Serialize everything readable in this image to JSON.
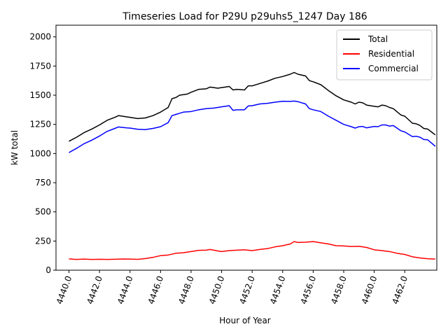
{
  "chart_data": {
    "type": "line",
    "title": "Timeseries Load for P29U p29uhs5_1247  Day 186",
    "xlabel": "Hour of Year",
    "ylabel": "kW total",
    "xlim": [
      4439.15,
      4464.1
    ],
    "ylim": [
      0,
      2100
    ],
    "xticks": [
      4440,
      4442,
      4444,
      4446,
      4448,
      4450,
      4452,
      4454,
      4456,
      4458,
      4460,
      4462
    ],
    "xtick_labels": [
      "4440.0",
      "4442.0",
      "4444.0",
      "4446.0",
      "4448.0",
      "4450.0",
      "4452.0",
      "4454.0",
      "4456.0",
      "4458.0",
      "4460.0",
      "4462.0"
    ],
    "yticks": [
      0,
      250,
      500,
      750,
      1000,
      1250,
      1500,
      1750,
      2000
    ],
    "ytick_labels": [
      "0",
      "250",
      "500",
      "750",
      "1000",
      "1250",
      "1500",
      "1750",
      "2000"
    ],
    "legend_position": "top-right",
    "series": [
      {
        "name": "Total",
        "color": "#000000",
        "points": [
          [
            4440.0,
            1105
          ],
          [
            4440.5,
            1140
          ],
          [
            4441.0,
            1180
          ],
          [
            4441.5,
            1210
          ],
          [
            4442.0,
            1245
          ],
          [
            4442.5,
            1285
          ],
          [
            4443.0,
            1310
          ],
          [
            4443.25,
            1325
          ],
          [
            4443.75,
            1315
          ],
          [
            4444.0,
            1310
          ],
          [
            4444.5,
            1300
          ],
          [
            4445.0,
            1305
          ],
          [
            4445.5,
            1325
          ],
          [
            4446.0,
            1355
          ],
          [
            4446.5,
            1395
          ],
          [
            4446.75,
            1470
          ],
          [
            4447.0,
            1480
          ],
          [
            4447.25,
            1500
          ],
          [
            4447.75,
            1510
          ],
          [
            4448.0,
            1525
          ],
          [
            4448.5,
            1550
          ],
          [
            4449.0,
            1555
          ],
          [
            4449.25,
            1570
          ],
          [
            4449.75,
            1560
          ],
          [
            4450.0,
            1565
          ],
          [
            4450.25,
            1570
          ],
          [
            4450.5,
            1575
          ],
          [
            4450.75,
            1545
          ],
          [
            4451.0,
            1550
          ],
          [
            4451.5,
            1545
          ],
          [
            4451.75,
            1580
          ],
          [
            4452.0,
            1580
          ],
          [
            4452.5,
            1600
          ],
          [
            4453.0,
            1620
          ],
          [
            4453.5,
            1645
          ],
          [
            4454.0,
            1660
          ],
          [
            4454.5,
            1680
          ],
          [
            4454.75,
            1695
          ],
          [
            4455.0,
            1680
          ],
          [
            4455.5,
            1665
          ],
          [
            4455.75,
            1625
          ],
          [
            4456.0,
            1615
          ],
          [
            4456.5,
            1590
          ],
          [
            4457.0,
            1540
          ],
          [
            4457.5,
            1495
          ],
          [
            4458.0,
            1460
          ],
          [
            4458.5,
            1440
          ],
          [
            4458.75,
            1425
          ],
          [
            4459.0,
            1440
          ],
          [
            4459.25,
            1435
          ],
          [
            4459.5,
            1415
          ],
          [
            4460.0,
            1405
          ],
          [
            4460.25,
            1400
          ],
          [
            4460.5,
            1415
          ],
          [
            4460.75,
            1410
          ],
          [
            4461.0,
            1395
          ],
          [
            4461.25,
            1385
          ],
          [
            4461.75,
            1330
          ],
          [
            4462.0,
            1320
          ],
          [
            4462.5,
            1260
          ],
          [
            4462.75,
            1255
          ],
          [
            4463.0,
            1240
          ],
          [
            4463.25,
            1215
          ],
          [
            4463.5,
            1210
          ],
          [
            4463.75,
            1185
          ],
          [
            4464.0,
            1160
          ]
        ]
      },
      {
        "name": "Residential",
        "color": "#ff0000",
        "points": [
          [
            4440.0,
            97
          ],
          [
            4440.5,
            92
          ],
          [
            4441.0,
            95
          ],
          [
            4441.5,
            92
          ],
          [
            4442.0,
            94
          ],
          [
            4442.5,
            92
          ],
          [
            4443.0,
            94
          ],
          [
            4443.5,
            96
          ],
          [
            4444.0,
            95
          ],
          [
            4444.5,
            93
          ],
          [
            4445.0,
            100
          ],
          [
            4445.5,
            110
          ],
          [
            4446.0,
            125
          ],
          [
            4446.5,
            130
          ],
          [
            4447.0,
            145
          ],
          [
            4447.5,
            150
          ],
          [
            4448.0,
            160
          ],
          [
            4448.5,
            170
          ],
          [
            4449.0,
            172
          ],
          [
            4449.25,
            178
          ],
          [
            4449.75,
            165
          ],
          [
            4450.0,
            160
          ],
          [
            4450.5,
            168
          ],
          [
            4451.0,
            172
          ],
          [
            4451.5,
            175
          ],
          [
            4452.0,
            168
          ],
          [
            4452.5,
            178
          ],
          [
            4453.0,
            185
          ],
          [
            4453.5,
            200
          ],
          [
            4454.0,
            210
          ],
          [
            4454.5,
            225
          ],
          [
            4454.75,
            245
          ],
          [
            4455.0,
            238
          ],
          [
            4455.5,
            240
          ],
          [
            4456.0,
            245
          ],
          [
            4456.5,
            235
          ],
          [
            4457.0,
            225
          ],
          [
            4457.5,
            210
          ],
          [
            4458.0,
            208
          ],
          [
            4458.5,
            203
          ],
          [
            4459.0,
            205
          ],
          [
            4459.5,
            195
          ],
          [
            4460.0,
            175
          ],
          [
            4460.5,
            168
          ],
          [
            4461.0,
            160
          ],
          [
            4461.5,
            145
          ],
          [
            4462.0,
            135
          ],
          [
            4462.5,
            115
          ],
          [
            4463.0,
            105
          ],
          [
            4463.5,
            98
          ],
          [
            4464.0,
            95
          ]
        ]
      },
      {
        "name": "Commercial",
        "color": "#0000ff",
        "points": [
          [
            4440.0,
            1008
          ],
          [
            4440.5,
            1045
          ],
          [
            4441.0,
            1085
          ],
          [
            4441.5,
            1115
          ],
          [
            4442.0,
            1150
          ],
          [
            4442.5,
            1190
          ],
          [
            4443.0,
            1215
          ],
          [
            4443.25,
            1228
          ],
          [
            4443.75,
            1220
          ],
          [
            4444.0,
            1218
          ],
          [
            4444.5,
            1208
          ],
          [
            4445.0,
            1205
          ],
          [
            4445.5,
            1215
          ],
          [
            4446.0,
            1230
          ],
          [
            4446.5,
            1265
          ],
          [
            4446.75,
            1325
          ],
          [
            4447.0,
            1335
          ],
          [
            4447.5,
            1355
          ],
          [
            4448.0,
            1360
          ],
          [
            4448.5,
            1375
          ],
          [
            4449.0,
            1385
          ],
          [
            4449.5,
            1390
          ],
          [
            4450.0,
            1400
          ],
          [
            4450.5,
            1410
          ],
          [
            4450.75,
            1370
          ],
          [
            4451.0,
            1375
          ],
          [
            4451.5,
            1375
          ],
          [
            4451.75,
            1408
          ],
          [
            4452.0,
            1410
          ],
          [
            4452.5,
            1425
          ],
          [
            4453.0,
            1430
          ],
          [
            4453.5,
            1440
          ],
          [
            4454.0,
            1448
          ],
          [
            4454.5,
            1447
          ],
          [
            4454.75,
            1450
          ],
          [
            4455.0,
            1445
          ],
          [
            4455.5,
            1425
          ],
          [
            4455.75,
            1385
          ],
          [
            4456.0,
            1375
          ],
          [
            4456.5,
            1360
          ],
          [
            4457.0,
            1320
          ],
          [
            4457.5,
            1285
          ],
          [
            4458.0,
            1250
          ],
          [
            4458.5,
            1230
          ],
          [
            4458.75,
            1218
          ],
          [
            4459.0,
            1230
          ],
          [
            4459.25,
            1232
          ],
          [
            4459.5,
            1220
          ],
          [
            4460.0,
            1232
          ],
          [
            4460.25,
            1230
          ],
          [
            4460.5,
            1245
          ],
          [
            4460.75,
            1245
          ],
          [
            4461.0,
            1235
          ],
          [
            4461.25,
            1240
          ],
          [
            4461.75,
            1195
          ],
          [
            4462.0,
            1185
          ],
          [
            4462.5,
            1145
          ],
          [
            4462.75,
            1148
          ],
          [
            4463.0,
            1140
          ],
          [
            4463.25,
            1120
          ],
          [
            4463.5,
            1118
          ],
          [
            4463.75,
            1090
          ],
          [
            4464.0,
            1062
          ]
        ]
      }
    ]
  }
}
